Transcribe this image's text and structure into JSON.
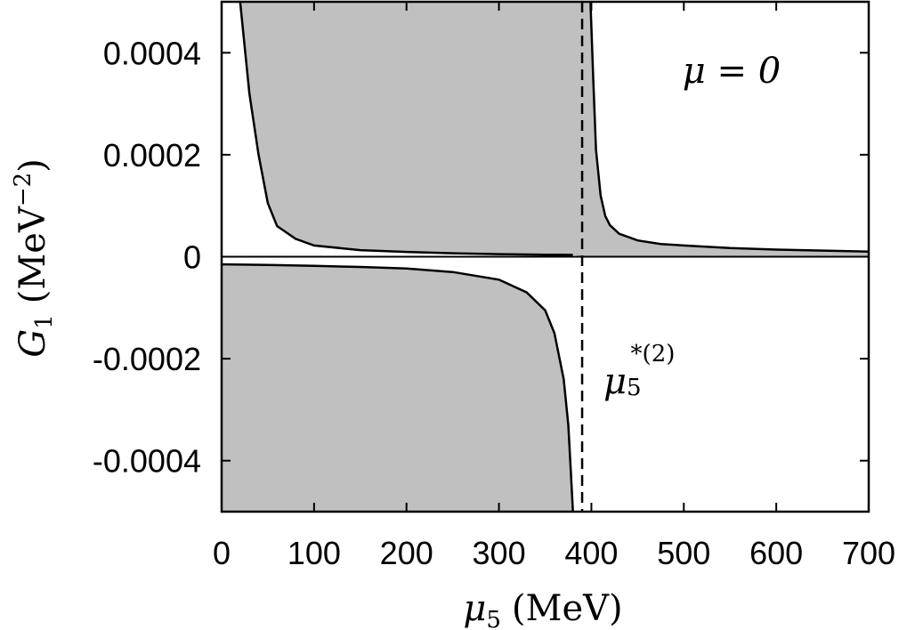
{
  "chart_data": {
    "type": "area",
    "annotation_mu": "μ = 0",
    "ylabel": {
      "symbol": "G",
      "sub": "1",
      "unit_prefix": "(MeV",
      "unit_exp": "−2",
      "unit_suffix": ")"
    },
    "xlabel": {
      "symbol": "μ",
      "sub": "5",
      "unit": "(MeV)"
    },
    "vline_label": {
      "symbol": "μ",
      "sub": "5",
      "sup": "*(2)"
    },
    "xlim": [
      0,
      700
    ],
    "ylim": [
      -0.0005,
      0.0005
    ],
    "x_ticks": [
      0,
      100,
      200,
      300,
      400,
      500,
      600,
      700
    ],
    "x_tick_labels": [
      "0",
      "100",
      "200",
      "300",
      "400",
      "500",
      "600",
      "700"
    ],
    "y_ticks": [
      0.0004,
      0.0002,
      0,
      -0.0002,
      -0.0004
    ],
    "y_tick_labels": [
      "0.0004",
      "0.0002",
      "0",
      "-0.0002",
      "-0.0004"
    ],
    "vline_x": 390,
    "fill_color": "#c0c0c0",
    "series": [
      {
        "x": [
          20,
          30,
          40,
          50,
          60,
          80,
          100,
          150,
          200,
          250,
          300,
          350,
          380
        ],
        "y": [
          0.0005,
          0.00032,
          0.0002,
          0.000105,
          6e-05,
          3.5e-05,
          2.2e-05,
          1.3e-05,
          9.5e-06,
          6.8e-06,
          5e-06,
          4e-06,
          3.5e-06
        ]
      },
      {
        "x": [
          0,
          50,
          100,
          150,
          200,
          250,
          300,
          330,
          350,
          360,
          370,
          375,
          378,
          380
        ],
        "y": [
          -1.5e-05,
          -1.6e-05,
          -1.8e-05,
          -2e-05,
          -2.3e-05,
          -3e-05,
          -4.5e-05,
          -7e-05,
          -0.000105,
          -0.00015,
          -0.00024,
          -0.00033,
          -0.00043,
          -0.0005
        ]
      },
      {
        "x": [
          399,
          402,
          405,
          410,
          415,
          420,
          430,
          450,
          475,
          500,
          550,
          600,
          650,
          700
        ],
        "y": [
          0.0005,
          0.00035,
          0.00021,
          0.00012,
          8e-05,
          6.2e-05,
          4.5e-05,
          3.2e-05,
          2.5e-05,
          2.2e-05,
          1.7e-05,
          1.4e-05,
          1.2e-05,
          1e-05
        ]
      }
    ]
  }
}
